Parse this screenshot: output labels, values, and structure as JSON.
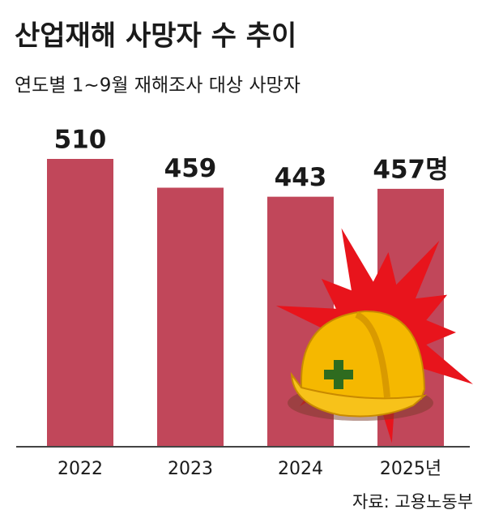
{
  "chart_data": {
    "type": "bar",
    "title": "산업재해 사망자 수 추이",
    "subtitle": "연도별 1~9월 재해조사 대상 사망자",
    "categories": [
      "2022",
      "2023",
      "2024",
      "2025년"
    ],
    "values": [
      510,
      459,
      443,
      457
    ],
    "value_labels": [
      "510",
      "459",
      "443",
      "457명"
    ],
    "color": "#c1475a",
    "source": "자료: 고용노동부"
  }
}
